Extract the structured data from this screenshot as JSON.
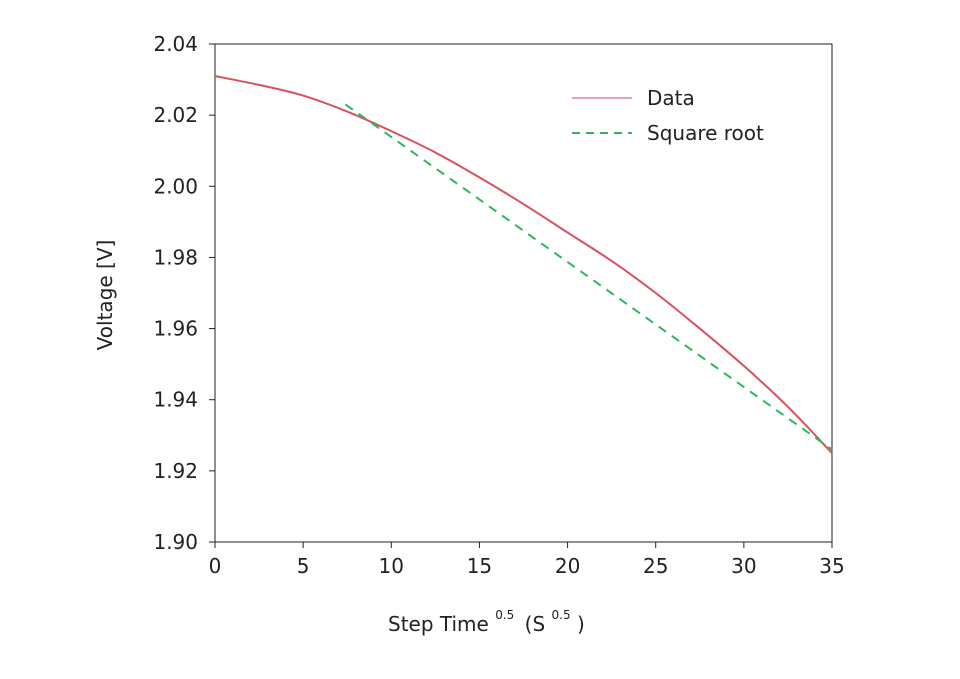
{
  "chart_data": {
    "type": "line",
    "title": "",
    "xlabel": {
      "main": "Step Time",
      "sup": "0.5",
      "open": "(S",
      "sup2": "0.5",
      "close": ")"
    },
    "ylabel": "Voltage [V]",
    "xlim": [
      0,
      35
    ],
    "ylim": [
      1.9,
      2.04
    ],
    "xticks": [
      "0",
      "5",
      "10",
      "15",
      "20",
      "25",
      "30",
      "35"
    ],
    "yticks": [
      "1.90",
      "1.92",
      "1.94",
      "1.96",
      "1.98",
      "2.00",
      "2.02",
      "2.04"
    ],
    "grid": false,
    "legend_position": "top-right",
    "series": [
      {
        "name": "Data",
        "color": "#d9505f",
        "style": "solid",
        "x": [
          0,
          2.5,
          5,
          7.5,
          10,
          12.5,
          15,
          17.5,
          20,
          22.5,
          25,
          27.5,
          30,
          32.5,
          35
        ],
        "y": [
          2.031,
          2.0285,
          2.0255,
          2.021,
          2.0155,
          2.0095,
          2.0025,
          1.995,
          1.987,
          1.979,
          1.97,
          1.96,
          1.9495,
          1.938,
          1.925
        ]
      },
      {
        "name": "Square root",
        "color": "#2db85c",
        "style": "dashed",
        "x": [
          7.4,
          35
        ],
        "y": [
          2.023,
          1.926
        ]
      }
    ]
  }
}
